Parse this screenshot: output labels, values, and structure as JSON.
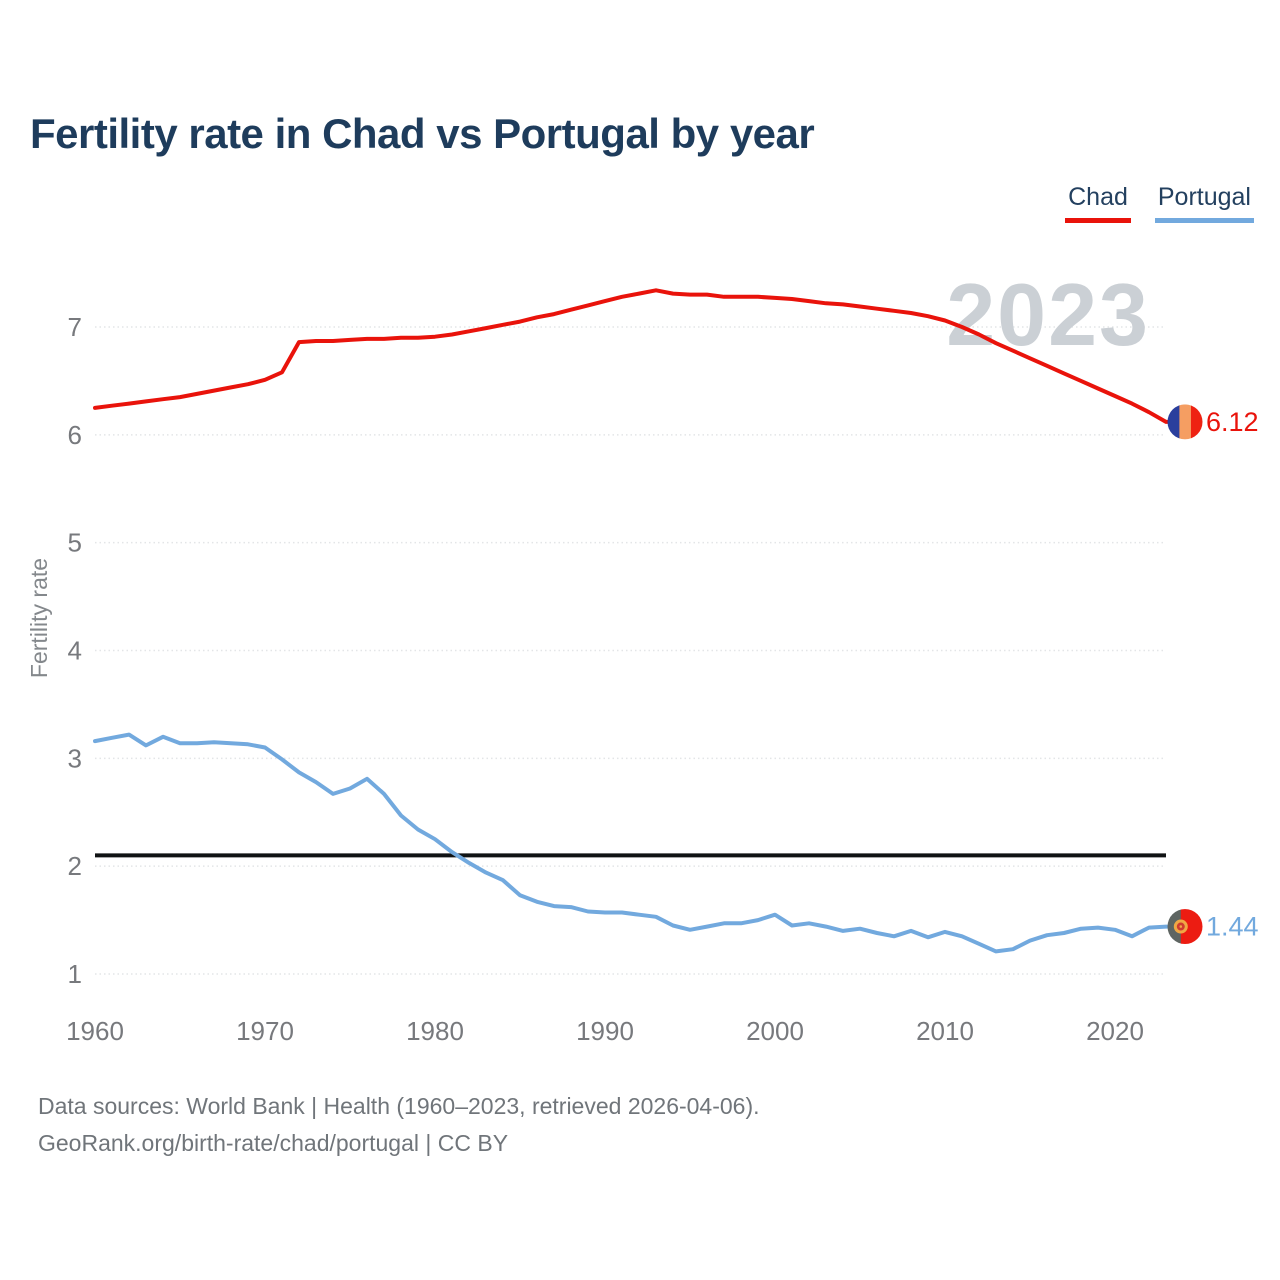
{
  "header": {
    "title": "Fertility rate in Chad vs Portugal by year"
  },
  "legend": {
    "items": [
      {
        "label": "Chad",
        "color": "#e9130b"
      },
      {
        "label": "Portugal",
        "color": "#72a9de"
      }
    ]
  },
  "chart_data": {
    "type": "line",
    "title": "Fertility rate in Chad vs Portugal by year",
    "xlabel": "",
    "ylabel": "Fertility rate",
    "x_range": [
      1960,
      2023
    ],
    "xticks": [
      1960,
      1970,
      1980,
      1990,
      2000,
      2010,
      2020
    ],
    "yticks": [
      1,
      2,
      3,
      4,
      5,
      6,
      7
    ],
    "ylim": [
      0.7,
      7.45
    ],
    "grid": "horizontal",
    "legend_position": "top-right",
    "watermark": "2023",
    "reference_line": {
      "value": 2.1,
      "color": "#101314"
    },
    "years": [
      1960,
      1961,
      1962,
      1963,
      1964,
      1965,
      1966,
      1967,
      1968,
      1969,
      1970,
      1971,
      1972,
      1973,
      1974,
      1975,
      1976,
      1977,
      1978,
      1979,
      1980,
      1981,
      1982,
      1983,
      1984,
      1985,
      1986,
      1987,
      1988,
      1989,
      1990,
      1991,
      1992,
      1993,
      1994,
      1995,
      1996,
      1997,
      1998,
      1999,
      2000,
      2001,
      2002,
      2003,
      2004,
      2005,
      2006,
      2007,
      2008,
      2009,
      2010,
      2011,
      2012,
      2013,
      2014,
      2015,
      2016,
      2017,
      2018,
      2019,
      2020,
      2021,
      2022,
      2023
    ],
    "series": [
      {
        "name": "Chad",
        "color": "#e9130b",
        "end_label": "6.12",
        "final_value": 6.12,
        "values": [
          6.25,
          6.27,
          6.29,
          6.31,
          6.33,
          6.35,
          6.38,
          6.41,
          6.44,
          6.47,
          6.51,
          6.58,
          6.86,
          6.87,
          6.87,
          6.88,
          6.89,
          6.89,
          6.9,
          6.9,
          6.91,
          6.93,
          6.96,
          6.99,
          7.02,
          7.05,
          7.09,
          7.12,
          7.16,
          7.2,
          7.24,
          7.28,
          7.31,
          7.34,
          7.31,
          7.3,
          7.3,
          7.28,
          7.28,
          7.28,
          7.27,
          7.26,
          7.24,
          7.22,
          7.21,
          7.19,
          7.17,
          7.15,
          7.13,
          7.1,
          7.06,
          7.0,
          6.93,
          6.85,
          6.78,
          6.71,
          6.64,
          6.57,
          6.5,
          6.43,
          6.36,
          6.29,
          6.21,
          6.12
        ],
        "flag": {
          "stripes": [
            {
              "color": "#2a3f9d",
              "w": 0.34
            },
            {
              "color": "#f59e62",
              "w": 0.33
            },
            {
              "color": "#ee2212",
              "w": 0.33
            }
          ]
        }
      },
      {
        "name": "Portugal",
        "color": "#72a9de",
        "end_label": "1.44",
        "final_value": 1.44,
        "values": [
          3.16,
          3.19,
          3.22,
          3.12,
          3.2,
          3.14,
          3.14,
          3.15,
          3.14,
          3.13,
          3.1,
          2.99,
          2.87,
          2.78,
          2.67,
          2.72,
          2.81,
          2.67,
          2.47,
          2.34,
          2.25,
          2.13,
          2.03,
          1.94,
          1.87,
          1.73,
          1.67,
          1.63,
          1.62,
          1.58,
          1.57,
          1.57,
          1.55,
          1.53,
          1.45,
          1.41,
          1.44,
          1.47,
          1.47,
          1.5,
          1.55,
          1.45,
          1.47,
          1.44,
          1.4,
          1.42,
          1.38,
          1.35,
          1.4,
          1.34,
          1.39,
          1.35,
          1.28,
          1.21,
          1.23,
          1.31,
          1.36,
          1.38,
          1.42,
          1.43,
          1.41,
          1.35,
          1.43,
          1.44
        ],
        "flag": {
          "stripes": [
            {
              "color": "#5e6562",
              "w": 0.38
            },
            {
              "color": "#ec1c12",
              "w": 0.62
            }
          ],
          "emblem": {
            "ring": "#f0a844",
            "center": "#cf3b30",
            "cx": 0.38
          }
        }
      }
    ]
  },
  "footer": {
    "line1": "Data sources: World Bank | Health (1960–2023, retrieved 2026-04-06).",
    "line2": "GeoRank.org/birth-rate/chad/portugal | CC BY"
  }
}
